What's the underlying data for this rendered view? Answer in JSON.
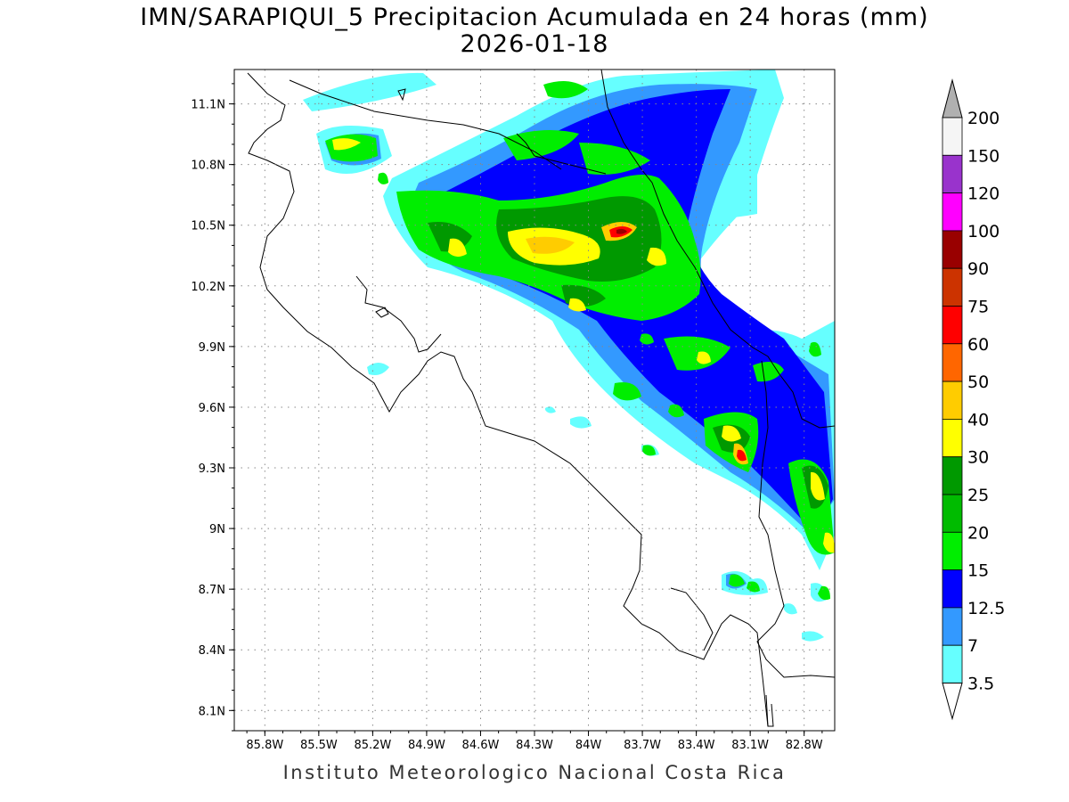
{
  "title": {
    "line1": "IMN/SARAPIQUI_5 Precipitacion Acumulada en 24 horas (mm)",
    "line2": "2026-01-18"
  },
  "footer": "Instituto Meteorologico Nacional Costa Rica",
  "axes": {
    "lon_labels": [
      "85.8W",
      "85.5W",
      "85.2W",
      "84.9W",
      "84.6W",
      "84.3W",
      "84W",
      "83.7W",
      "83.4W",
      "83.1W",
      "82.8W"
    ],
    "lat_labels": [
      "11.1N",
      "10.8N",
      "10.5N",
      "10.2N",
      "9.9N",
      "9.6N",
      "9.3N",
      "9N",
      "8.7N",
      "8.4N",
      "8.1N"
    ],
    "lon_range": [
      -85.97,
      -82.63
    ],
    "lat_range": [
      8.0,
      11.27
    ],
    "grid": true
  },
  "colorbar": {
    "labels": [
      "200",
      "150",
      "120",
      "100",
      "90",
      "75",
      "60",
      "50",
      "40",
      "30",
      "25",
      "20",
      "15",
      "12.5",
      "7",
      "3.5"
    ],
    "colors": [
      "#ffffff",
      "#f5f5f5",
      "#9933cc",
      "#ff00ff",
      "#990000",
      "#cc3300",
      "#ff0000",
      "#ff6600",
      "#ffcc00",
      "#ffff00",
      "#009900",
      "#00bb00",
      "#00ee00",
      "#0000ff",
      "#3399ff",
      "#66ffff"
    ],
    "over_color": "#b0b0b0",
    "under_color": "#ffffff"
  }
}
